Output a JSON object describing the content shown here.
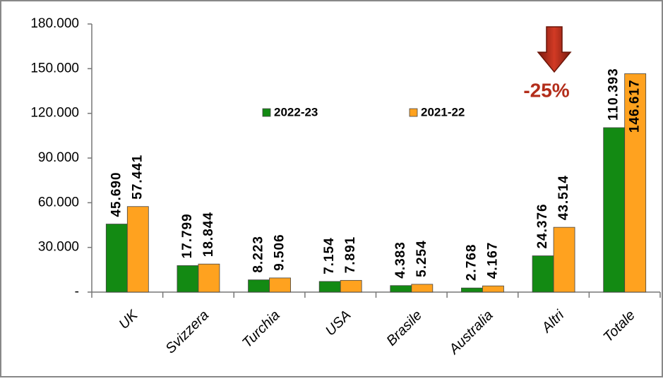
{
  "chart_data": {
    "type": "bar",
    "categories": [
      "UK",
      "Svizzera",
      "Turchia",
      "USA",
      "Brasile",
      "Australia",
      "Altri",
      "Totale"
    ],
    "series": [
      {
        "name": "2022-23",
        "color": "#138a13",
        "values": [
          45690,
          17799,
          8223,
          7154,
          4383,
          2768,
          24376,
          110393
        ],
        "value_labels": [
          "45.690",
          "17.799",
          "8.223",
          "7.154",
          "4.383",
          "2.768",
          "24.376",
          "110.393"
        ]
      },
      {
        "name": "2021-22",
        "color": "#ffa21f",
        "values": [
          57441,
          18844,
          9506,
          7891,
          5254,
          4167,
          43514,
          146617
        ],
        "value_labels": [
          "57.441",
          "18.844",
          "9.506",
          "7.891",
          "5.254",
          "4.167",
          "43.514",
          "146.617"
        ]
      }
    ],
    "ylim": [
      0,
      180000
    ],
    "yticks": [
      {
        "value": 0,
        "label": "-"
      },
      {
        "value": 30000,
        "label": "30.000"
      },
      {
        "value": 60000,
        "label": "60.000"
      },
      {
        "value": 90000,
        "label": "90.000"
      },
      {
        "value": 120000,
        "label": "120.000"
      },
      {
        "value": 150000,
        "label": "150.000"
      },
      {
        "value": 180000,
        "label": "180.000"
      }
    ],
    "annotation": "-25%"
  }
}
